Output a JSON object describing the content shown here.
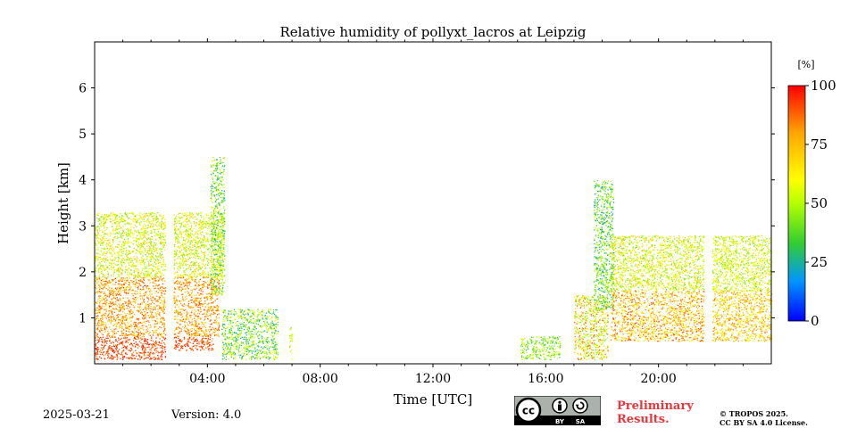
{
  "chart_data": {
    "type": "heatmap",
    "title": "Relative humidity of pollyxt_lacros at Leipzig",
    "xlabel": "Time [UTC]",
    "ylabel": "Height [km]",
    "x_unit": "hours UTC",
    "xlim": [
      0,
      24
    ],
    "ylim": [
      0,
      7
    ],
    "x_ticks": [
      {
        "value": 4,
        "label": "04:00"
      },
      {
        "value": 8,
        "label": "08:00"
      },
      {
        "value": 12,
        "label": "12:00"
      },
      {
        "value": 16,
        "label": "16:00"
      },
      {
        "value": 20,
        "label": "20:00"
      }
    ],
    "y_ticks": [
      {
        "value": 1,
        "label": "1"
      },
      {
        "value": 2,
        "label": "2"
      },
      {
        "value": 3,
        "label": "3"
      },
      {
        "value": 4,
        "label": "4"
      },
      {
        "value": 5,
        "label": "5"
      },
      {
        "value": 6,
        "label": "6"
      }
    ],
    "colorbar": {
      "label": "[%]",
      "range": [
        0,
        100
      ],
      "ticks": [
        {
          "value": 0,
          "label": "0"
        },
        {
          "value": 25,
          "label": "25"
        },
        {
          "value": 50,
          "label": "50"
        },
        {
          "value": 75,
          "label": "75"
        },
        {
          "value": 100,
          "label": "100"
        }
      ],
      "colormap": [
        "#0000ff",
        "#0096ff",
        "#32cd32",
        "#b4ff00",
        "#ffff00",
        "#ffa500",
        "#ff0000"
      ]
    },
    "regions": [
      {
        "x": [
          0.0,
          2.5
        ],
        "y": [
          1.9,
          3.3
        ],
        "rh": [
          40,
          80
        ]
      },
      {
        "x": [
          0.0,
          2.5
        ],
        "y": [
          0.1,
          0.6
        ],
        "rh": [
          85,
          100
        ]
      },
      {
        "x": [
          0.0,
          2.5
        ],
        "y": [
          0.6,
          1.9
        ],
        "rh": [
          70,
          95
        ]
      },
      {
        "x": [
          2.8,
          4.6
        ],
        "y": [
          1.9,
          3.3
        ],
        "rh": [
          40,
          80
        ]
      },
      {
        "x": [
          2.8,
          4.2
        ],
        "y": [
          0.3,
          0.6
        ],
        "rh": [
          85,
          100
        ]
      },
      {
        "x": [
          2.8,
          4.4
        ],
        "y": [
          0.6,
          1.9
        ],
        "rh": [
          70,
          95
        ]
      },
      {
        "x": [
          4.1,
          4.6
        ],
        "y": [
          1.5,
          4.5
        ],
        "rh": [
          20,
          70
        ]
      },
      {
        "x": [
          4.5,
          6.5
        ],
        "y": [
          0.1,
          1.2
        ],
        "rh": [
          20,
          70
        ]
      },
      {
        "x": [
          6.9,
          7.0
        ],
        "y": [
          0.1,
          0.8
        ],
        "rh": [
          40,
          80
        ]
      },
      {
        "x": [
          15.1,
          16.5
        ],
        "y": [
          0.1,
          0.6
        ],
        "rh": [
          30,
          60
        ]
      },
      {
        "x": [
          17.0,
          18.2
        ],
        "y": [
          0.1,
          1.5
        ],
        "rh": [
          40,
          95
        ]
      },
      {
        "x": [
          17.7,
          18.4
        ],
        "y": [
          1.2,
          4.0
        ],
        "rh": [
          20,
          60
        ]
      },
      {
        "x": [
          18.3,
          21.6
        ],
        "y": [
          1.6,
          2.8
        ],
        "rh": [
          40,
          80
        ]
      },
      {
        "x": [
          18.3,
          21.6
        ],
        "y": [
          0.5,
          1.6
        ],
        "rh": [
          60,
          95
        ]
      },
      {
        "x": [
          21.9,
          24.0
        ],
        "y": [
          1.6,
          2.8
        ],
        "rh": [
          40,
          75
        ]
      },
      {
        "x": [
          21.9,
          24.0
        ],
        "y": [
          0.5,
          1.6
        ],
        "rh": [
          60,
          90
        ]
      }
    ]
  },
  "footer": {
    "date": "2025-03-21",
    "version": "Version: 4.0",
    "preliminary_line1": "Preliminary",
    "preliminary_line2": "Results.",
    "copyright_line1": "© TROPOS 2025.",
    "copyright_line2": "CC BY SA 4.0 License."
  },
  "license_badge": {
    "cc": "cc",
    "by": "BY",
    "sa": "SA",
    "icons": [
      "cc-icon",
      "attribution-icon",
      "share-alike-icon"
    ]
  }
}
